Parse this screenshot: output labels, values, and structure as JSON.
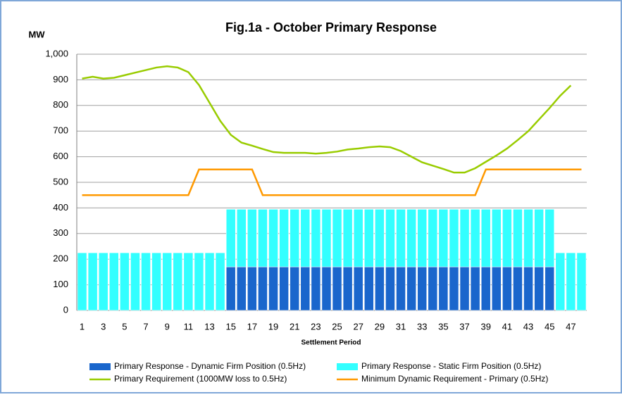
{
  "chart_data": {
    "type": "combo",
    "title": "Fig.1a - October Primary Response",
    "y_label": "MW",
    "x_label": "Settlement Period",
    "categories": [
      "1",
      null,
      "3",
      null,
      "5",
      null,
      "7",
      null,
      "9",
      null,
      "11",
      null,
      "13",
      null,
      "15",
      null,
      "17",
      null,
      "19",
      null,
      "21",
      null,
      "23",
      null,
      "25",
      null,
      "27",
      null,
      "29",
      null,
      "31",
      null,
      "33",
      null,
      "35",
      null,
      "37",
      null,
      "39",
      null,
      "41",
      null,
      "43",
      null,
      "45",
      null,
      "47",
      null
    ],
    "series": [
      {
        "name": "Primary Response - Dynamic Firm Position (0.5Hz)",
        "type": "bar",
        "color": "#1a66cc",
        "values": [
          0,
          0,
          0,
          0,
          0,
          0,
          0,
          0,
          0,
          0,
          0,
          0,
          0,
          0,
          170,
          170,
          170,
          170,
          170,
          170,
          170,
          170,
          170,
          170,
          170,
          170,
          170,
          170,
          170,
          170,
          170,
          170,
          170,
          170,
          170,
          170,
          170,
          170,
          170,
          170,
          170,
          170,
          170,
          170,
          170,
          0,
          0,
          0
        ]
      },
      {
        "name": "Primary Response - Static Firm Position (0.5Hz)",
        "type": "bar",
        "color": "#33ffff",
        "values": [
          225,
          225,
          225,
          225,
          225,
          225,
          225,
          225,
          225,
          225,
          225,
          225,
          225,
          225,
          225,
          225,
          225,
          225,
          225,
          225,
          225,
          225,
          225,
          225,
          225,
          225,
          225,
          225,
          225,
          225,
          225,
          225,
          225,
          225,
          225,
          225,
          225,
          225,
          225,
          225,
          225,
          225,
          225,
          225,
          225,
          225,
          225,
          225
        ]
      },
      {
        "name": "Primary Requirement (1000MW loss to 0.5Hz)",
        "type": "line",
        "color": "#99cc00",
        "values": [
          905,
          912,
          905,
          908,
          918,
          928,
          938,
          948,
          953,
          948,
          930,
          880,
          810,
          740,
          685,
          655,
          643,
          630,
          618,
          615,
          615,
          615,
          612,
          615,
          620,
          628,
          632,
          637,
          640,
          637,
          622,
          600,
          578,
          565,
          552,
          538,
          538,
          555,
          580,
          605,
          632,
          665,
          700,
          745,
          790,
          838,
          878,
          null
        ]
      },
      {
        "name": "Minimum Dynamic Requirement - Primary  (0.5Hz)",
        "type": "line",
        "color": "#ff9900",
        "values": [
          450,
          450,
          450,
          450,
          450,
          450,
          450,
          450,
          450,
          450,
          450,
          550,
          550,
          550,
          550,
          550,
          550,
          450,
          450,
          450,
          450,
          450,
          450,
          450,
          450,
          450,
          450,
          450,
          450,
          450,
          450,
          450,
          450,
          450,
          450,
          450,
          450,
          450,
          550,
          550,
          550,
          550,
          550,
          550,
          550,
          550,
          550,
          550
        ]
      }
    ],
    "ylim": [
      0,
      1000
    ],
    "yticks": [
      0,
      100,
      200,
      300,
      400,
      500,
      600,
      700,
      800,
      900,
      {
        "value": 1000,
        "label": "1,000"
      }
    ],
    "grid": true
  }
}
